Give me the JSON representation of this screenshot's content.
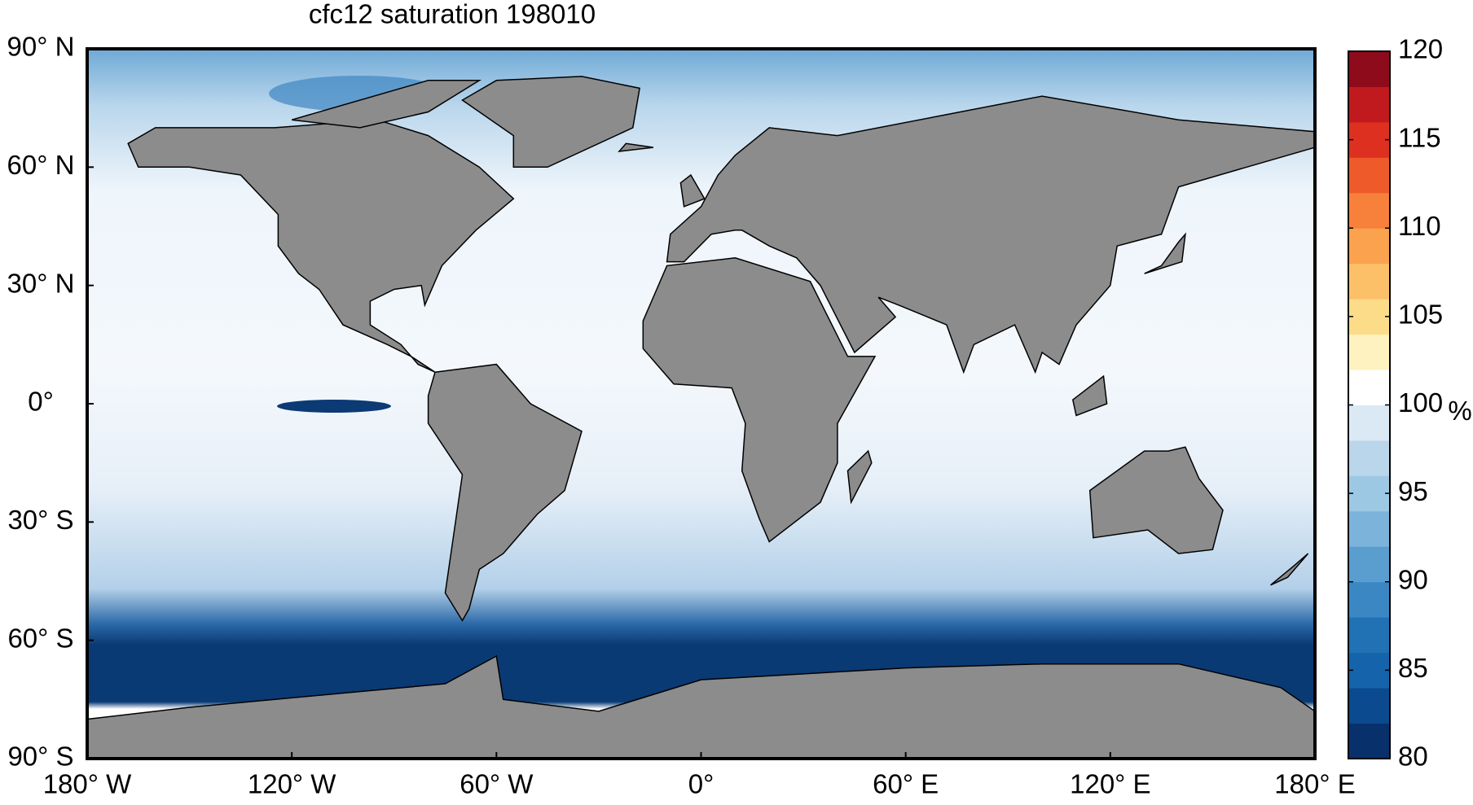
{
  "map_data": {
    "title": "cfc12 saturation 198010",
    "lon_ticks": [
      {
        "value": -180,
        "label": "180° W"
      },
      {
        "value": -120,
        "label": "120° W"
      },
      {
        "value": -60,
        "label": "60° W"
      },
      {
        "value": 0,
        "label": "0°"
      },
      {
        "value": 60,
        "label": "60° E"
      },
      {
        "value": 120,
        "label": "120° E"
      },
      {
        "value": 180,
        "label": "180° E"
      }
    ],
    "lat_ticks": [
      {
        "value": 90,
        "label": "90° N"
      },
      {
        "value": 60,
        "label": "60° N"
      },
      {
        "value": 30,
        "label": "30° N"
      },
      {
        "value": 0,
        "label": "0°"
      },
      {
        "value": -30,
        "label": "30° S"
      },
      {
        "value": -60,
        "label": "60° S"
      },
      {
        "value": -90,
        "label": "90° S"
      }
    ],
    "colorbar": {
      "label": "%",
      "lim": [
        80,
        120
      ],
      "ticks": [
        80,
        85,
        90,
        95,
        100,
        105,
        110,
        115,
        120
      ],
      "colors": [
        "#08306b",
        "#0b4a8f",
        "#1563aa",
        "#2171b5",
        "#3a87c3",
        "#5a9ecf",
        "#7bb3da",
        "#9cc8e3",
        "#bad6eb",
        "#dbe9f5",
        "#ffffff",
        "#fdf2c0",
        "#fcdc88",
        "#fcc068",
        "#fba24e",
        "#f7813a",
        "#ee5a2a",
        "#dd3021",
        "#c01a1e",
        "#8e0b1c"
      ],
      "land_color": "#8c8c8c"
    }
  }
}
